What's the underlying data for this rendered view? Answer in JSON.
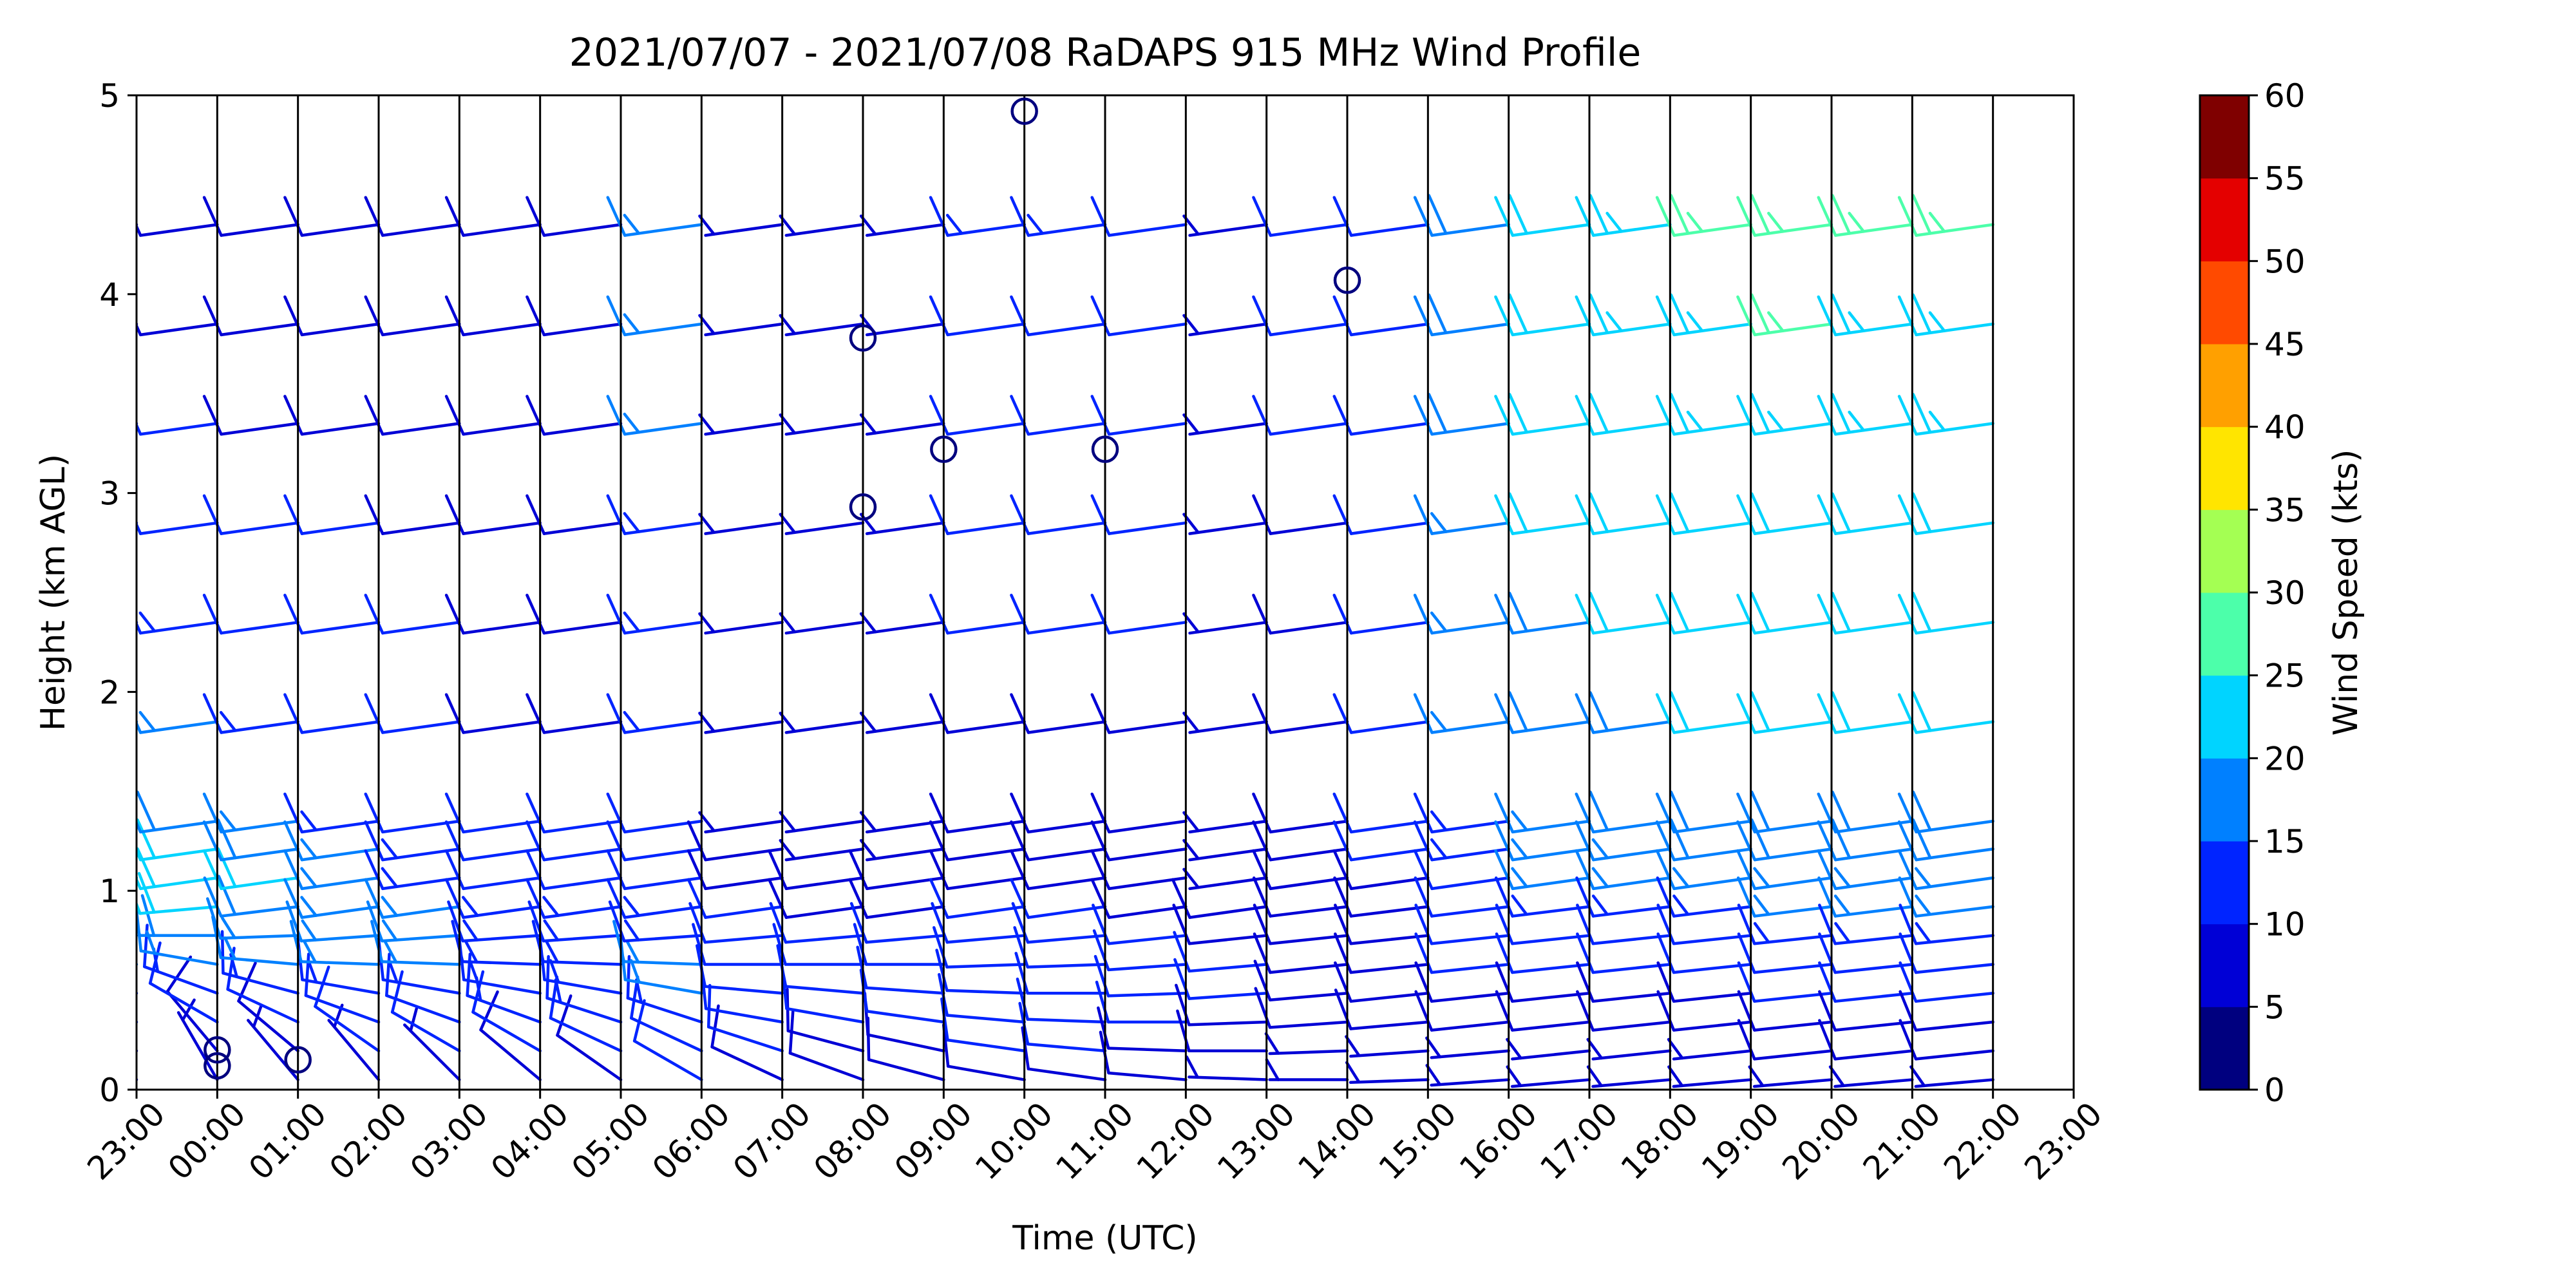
{
  "chart_data": {
    "type": "wind-barb-profile",
    "title": "2021/07/07 - 2021/07/08 RaDAPS 915 MHz Wind Profile",
    "xlabel": "Time (UTC)",
    "ylabel": "Height (km AGL)",
    "x_ticks": [
      "23:00",
      "00:00",
      "01:00",
      "02:00",
      "03:00",
      "04:00",
      "05:00",
      "06:00",
      "07:00",
      "08:00",
      "09:00",
      "10:00",
      "11:00",
      "12:00",
      "13:00",
      "14:00",
      "15:00",
      "16:00",
      "17:00",
      "18:00",
      "19:00",
      "20:00",
      "21:00",
      "22:00",
      "23:00"
    ],
    "y_ticks": [
      "0",
      "1",
      "2",
      "3",
      "4",
      "5"
    ],
    "ylim": [
      0,
      5
    ],
    "colorbar": {
      "label": "Wind Speed (kts)",
      "ticks": [
        "0",
        "5",
        "10",
        "15",
        "20",
        "25",
        "30",
        "35",
        "40",
        "45",
        "50",
        "55",
        "60"
      ],
      "colors": [
        "#00007f",
        "#0000d6",
        "#0024ff",
        "#0080ff",
        "#00d4ff",
        "#4cffaa",
        "#a4ff53",
        "#ffe500",
        "#ffa000",
        "#ff4a00",
        "#e40000",
        "#7f0000"
      ]
    },
    "profiles": [
      {
        "time": "23:00",
        "speed": [
          5,
          8,
          11,
          13,
          15,
          18,
          21,
          22,
          21,
          19,
          16,
          13,
          11,
          10,
          9,
          8
        ],
        "dir": [
          330,
          320,
          300,
          290,
          280,
          270,
          265,
          262,
          262,
          262,
          262,
          262,
          262,
          262,
          262,
          262
        ]
      },
      {
        "time": "00:00",
        "speed": [
          5,
          8,
          11,
          13,
          15,
          18,
          21,
          22,
          21,
          19,
          16,
          13,
          11,
          10,
          9,
          8
        ],
        "dir": [
          330,
          320,
          300,
          290,
          280,
          270,
          265,
          262,
          262,
          262,
          262,
          262,
          262,
          262,
          262,
          262
        ]
      },
      {
        "time": "01:00",
        "speed": [
          6,
          9,
          12,
          14,
          16,
          17,
          19,
          20,
          18,
          16,
          14,
          12,
          10,
          9,
          8,
          8
        ],
        "dir": [
          320,
          310,
          295,
          285,
          275,
          268,
          263,
          262,
          262,
          262,
          262,
          262,
          262,
          262,
          262,
          262
        ]
      },
      {
        "time": "02:00",
        "speed": [
          7,
          10,
          12,
          14,
          15,
          16,
          17,
          17,
          16,
          14,
          12,
          11,
          10,
          9,
          8,
          8
        ],
        "dir": [
          320,
          305,
          290,
          280,
          272,
          266,
          262,
          262,
          262,
          262,
          262,
          262,
          262,
          262,
          262,
          262
        ]
      },
      {
        "time": "03:00",
        "speed": [
          7,
          10,
          12,
          14,
          15,
          15,
          15,
          14,
          13,
          12,
          11,
          10,
          9,
          9,
          8,
          8
        ],
        "dir": [
          315,
          300,
          290,
          280,
          272,
          266,
          262,
          262,
          262,
          262,
          262,
          262,
          262,
          262,
          262,
          262
        ]
      },
      {
        "time": "04:00",
        "speed": [
          8,
          11,
          13,
          14,
          14,
          14,
          13,
          12,
          11,
          10,
          9,
          8,
          8,
          8,
          8,
          8
        ],
        "dir": [
          310,
          300,
          290,
          280,
          272,
          266,
          262,
          262,
          262,
          262,
          262,
          262,
          262,
          262,
          262,
          262
        ]
      },
      {
        "time": "05:00",
        "speed": [
          8,
          11,
          13,
          14,
          14,
          14,
          13,
          12,
          11,
          10,
          9,
          8,
          8,
          8,
          8,
          8
        ],
        "dir": [
          305,
          295,
          288,
          280,
          272,
          266,
          262,
          262,
          262,
          262,
          262,
          262,
          262,
          262,
          262,
          262
        ]
      },
      {
        "time": "06:00",
        "speed": [
          10,
          12,
          14,
          15,
          15,
          14,
          13,
          12,
          12,
          12,
          13,
          14,
          14,
          15,
          15,
          15
        ],
        "dir": [
          300,
          295,
          288,
          280,
          272,
          266,
          262,
          262,
          262,
          262,
          262,
          262,
          262,
          262,
          262,
          262
        ]
      },
      {
        "time": "07:00",
        "speed": [
          9,
          10,
          11,
          12,
          12,
          11,
          10,
          9,
          8,
          7,
          6,
          6,
          6,
          6,
          6,
          6
        ],
        "dir": [
          295,
          288,
          280,
          275,
          270,
          265,
          262,
          262,
          262,
          262,
          262,
          262,
          262,
          262,
          262,
          262
        ]
      },
      {
        "time": "08:00",
        "speed": [
          8,
          9,
          10,
          11,
          11,
          10,
          9,
          8,
          7,
          6,
          6,
          6,
          6,
          6,
          6,
          6
        ],
        "dir": [
          290,
          285,
          280,
          275,
          270,
          265,
          262,
          262,
          262,
          262,
          262,
          262,
          262,
          262,
          262,
          262
        ]
      },
      {
        "time": "09:00",
        "speed": [
          8,
          9,
          10,
          11,
          11,
          10,
          9,
          8,
          7,
          6,
          6,
          6,
          6,
          6,
          6,
          6
        ],
        "dir": [
          285,
          282,
          278,
          274,
          270,
          265,
          262,
          262,
          262,
          262,
          262,
          262,
          262,
          262,
          262,
          262
        ]
      },
      {
        "time": "10:00",
        "speed": [
          9,
          10,
          11,
          12,
          12,
          11,
          10,
          9,
          8,
          8,
          9,
          10,
          10,
          11,
          12,
          13
        ],
        "dir": [
          280,
          278,
          275,
          272,
          268,
          265,
          262,
          262,
          262,
          262,
          262,
          262,
          262,
          262,
          262,
          262
        ]
      },
      {
        "time": "11:00",
        "speed": [
          9,
          10,
          11,
          12,
          12,
          11,
          10,
          9,
          8,
          8,
          9,
          10,
          10,
          11,
          12,
          13
        ],
        "dir": [
          278,
          275,
          272,
          270,
          268,
          265,
          262,
          262,
          262,
          262,
          262,
          262,
          262,
          262,
          262,
          262
        ]
      },
      {
        "time": "12:00",
        "speed": [
          8,
          9,
          10,
          11,
          11,
          10,
          9,
          8,
          8,
          8,
          9,
          10,
          11,
          12,
          12,
          12
        ],
        "dir": [
          275,
          272,
          270,
          268,
          266,
          264,
          262,
          262,
          262,
          262,
          262,
          262,
          262,
          262,
          262,
          262
        ]
      },
      {
        "time": "13:00",
        "speed": [
          7,
          8,
          9,
          10,
          10,
          9,
          8,
          7,
          7,
          7,
          7,
          7,
          7,
          7,
          7,
          7
        ],
        "dir": [
          272,
          270,
          268,
          266,
          265,
          264,
          262,
          262,
          262,
          262,
          262,
          262,
          262,
          262,
          262,
          262
        ]
      },
      {
        "time": "14:00",
        "speed": [
          6,
          7,
          8,
          9,
          9,
          9,
          8,
          8,
          8,
          8,
          8,
          9,
          9,
          10,
          10,
          10
        ],
        "dir": [
          270,
          268,
          266,
          265,
          264,
          264,
          263,
          262,
          262,
          262,
          262,
          262,
          262,
          262,
          262,
          262
        ]
      },
      {
        "time": "15:00",
        "speed": [
          6,
          7,
          8,
          9,
          9,
          9,
          9,
          9,
          10,
          10,
          11,
          11,
          12,
          12,
          12,
          12
        ],
        "dir": [
          268,
          266,
          265,
          264,
          264,
          264,
          263,
          262,
          262,
          262,
          262,
          262,
          262,
          262,
          262,
          262
        ]
      },
      {
        "time": "16:00",
        "speed": [
          6,
          7,
          8,
          9,
          10,
          10,
          11,
          12,
          13,
          14,
          15,
          16,
          17,
          18,
          18,
          18
        ],
        "dir": [
          266,
          265,
          264,
          264,
          264,
          264,
          263,
          262,
          262,
          262,
          262,
          262,
          262,
          262,
          262,
          262
        ]
      },
      {
        "time": "17:00",
        "speed": [
          6,
          7,
          8,
          9,
          10,
          11,
          13,
          15,
          16,
          17,
          18,
          19,
          20,
          21,
          22,
          22
        ],
        "dir": [
          265,
          264,
          264,
          264,
          264,
          264,
          263,
          262,
          262,
          262,
          262,
          262,
          262,
          262,
          262,
          262
        ]
      },
      {
        "time": "18:00",
        "speed": [
          6,
          7,
          8,
          9,
          10,
          12,
          14,
          16,
          17,
          18,
          19,
          20,
          21,
          22,
          23,
          23
        ],
        "dir": [
          265,
          264,
          264,
          264,
          264,
          264,
          263,
          262,
          262,
          262,
          262,
          262,
          262,
          262,
          262,
          262
        ]
      },
      {
        "time": "19:00",
        "speed": [
          6,
          7,
          8,
          9,
          10,
          12,
          14,
          16,
          18,
          19,
          20,
          21,
          22,
          23,
          24,
          25
        ],
        "dir": [
          265,
          264,
          264,
          264,
          264,
          264,
          263,
          262,
          262,
          262,
          262,
          262,
          262,
          262,
          262,
          262
        ]
      },
      {
        "time": "20:00",
        "speed": [
          7,
          8,
          9,
          10,
          11,
          13,
          15,
          17,
          18,
          19,
          20,
          21,
          22,
          23,
          25,
          27
        ],
        "dir": [
          265,
          264,
          264,
          264,
          264,
          264,
          263,
          262,
          262,
          262,
          262,
          262,
          262,
          262,
          262,
          262
        ]
      },
      {
        "time": "21:00",
        "speed": [
          7,
          8,
          9,
          10,
          11,
          13,
          15,
          17,
          18,
          19,
          20,
          21,
          22,
          23,
          24,
          26
        ],
        "dir": [
          265,
          264,
          264,
          264,
          264,
          264,
          263,
          262,
          262,
          262,
          262,
          262,
          262,
          262,
          262,
          262
        ]
      },
      {
        "time": "22:00",
        "speed": [
          7,
          8,
          9,
          10,
          11,
          13,
          15,
          17,
          18,
          19,
          20,
          21,
          22,
          23,
          24,
          25
        ],
        "dir": [
          265,
          264,
          264,
          264,
          264,
          264,
          263,
          262,
          262,
          262,
          262,
          262,
          262,
          262,
          262,
          262
        ]
      }
    ],
    "calm_markers": [
      {
        "time": "00:00",
        "height": 0.2
      },
      {
        "time": "00:00",
        "height": 0.12
      },
      {
        "time": "01:00",
        "height": 0.15
      },
      {
        "time": "08:00",
        "height": 3.78
      },
      {
        "time": "08:00",
        "height": 2.93
      },
      {
        "time": "09:00",
        "height": 3.22
      },
      {
        "time": "10:00",
        "height": 4.92
      },
      {
        "time": "11:00",
        "height": 3.22
      },
      {
        "time": "14:00",
        "height": 4.07
      }
    ]
  }
}
